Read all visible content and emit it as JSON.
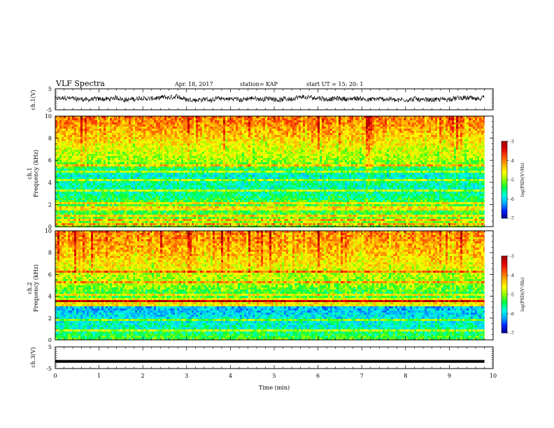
{
  "header": {
    "title": "VLF Spectra",
    "date": "Apr. 18, 2017",
    "station": "station= KAP",
    "start": "start  UT =   15: 20: 1"
  },
  "colorbar": {
    "label": "log(PSD)(V²/Hz)",
    "ticks": [
      "-3",
      "-4",
      "-5",
      "-6",
      "-7"
    ]
  },
  "colors": {
    "cmap": [
      "#00008c",
      "#0020ff",
      "#00b0ff",
      "#00ffe0",
      "#00ff40",
      "#8cff00",
      "#ffff00",
      "#ffb000",
      "#ff5000",
      "#e00000",
      "#a00000"
    ]
  },
  "chart_data": [
    {
      "type": "line",
      "name": "ch1-waveform",
      "ylabel": "ch.1(V)",
      "yticks": [
        "5",
        "-5"
      ],
      "ylim": [
        -5,
        5
      ],
      "xlim": [
        0,
        10
      ],
      "approx_x_extent": [
        0,
        9.8
      ],
      "approx_center": 0.2,
      "approx_amplitude": 1.5
    },
    {
      "type": "heatmap",
      "name": "ch1-spectrogram",
      "ylabel_top": "ch.1",
      "ylabel": "Frequency (kHz)",
      "yticks": [
        "0",
        "2",
        "4",
        "6",
        "8",
        "10"
      ],
      "ylim": [
        0,
        10
      ],
      "xlim": [
        0,
        9.8
      ],
      "colorbar_range": [
        -7,
        -3
      ],
      "freq_profile_khz": [
        0,
        0.5,
        1,
        1.5,
        2,
        2.5,
        3,
        3.5,
        4,
        4.5,
        5,
        5.5,
        6,
        7,
        8,
        9,
        10
      ],
      "freq_profile_logpsd": [
        -5.0,
        -5.0,
        -5.2,
        -5.3,
        -5.2,
        -5.4,
        -5.6,
        -5.7,
        -5.6,
        -5.8,
        -5.7,
        -5.1,
        -4.9,
        -4.7,
        -4.4,
        -4.1,
        -3.9
      ],
      "horizontal_lines_khz": [
        0.2,
        0.6,
        1.0,
        1.5,
        1.8,
        2.2,
        2.4,
        3.2,
        4.2,
        5.0,
        5.5
      ]
    },
    {
      "type": "heatmap",
      "name": "ch2-spectrogram",
      "ylabel_top": "ch.2",
      "ylabel": "Frequency (kHz)",
      "yticks": [
        "0",
        "2",
        "4",
        "6",
        "8",
        "10"
      ],
      "ylim": [
        0,
        10
      ],
      "xlim": [
        0,
        9.8
      ],
      "colorbar_range": [
        -7,
        -3
      ],
      "freq_profile_khz": [
        0,
        0.5,
        1,
        1.5,
        2,
        2.5,
        3,
        3.5,
        4,
        4.5,
        5,
        5.5,
        6,
        7,
        8,
        9,
        10
      ],
      "freq_profile_logpsd": [
        -5.2,
        -5.4,
        -5.7,
        -5.8,
        -5.9,
        -6.0,
        -6.1,
        -3.9,
        -5.4,
        -5.2,
        -5.0,
        -4.9,
        -4.8,
        -4.5,
        -4.3,
        -4.1,
        -4.0
      ],
      "horizontal_lines_khz": [
        0.8,
        1.9,
        3.2,
        3.5,
        4.1,
        4.8,
        5.3,
        6.2
      ]
    },
    {
      "type": "line",
      "name": "ch3-waveform",
      "ylabel": "ch.3(V)",
      "yticks": [
        "5",
        "-5"
      ],
      "ylim": [
        -5,
        5
      ],
      "xlim": [
        0,
        10
      ],
      "approx_x_extent": [
        0,
        9.8
      ],
      "approx_constant_value": -1.7
    }
  ],
  "xaxis": {
    "label": "Time (min)",
    "ticks": [
      "0",
      "1",
      "2",
      "3",
      "4",
      "5",
      "6",
      "7",
      "8",
      "9",
      "10"
    ],
    "range": [
      0,
      10
    ]
  }
}
